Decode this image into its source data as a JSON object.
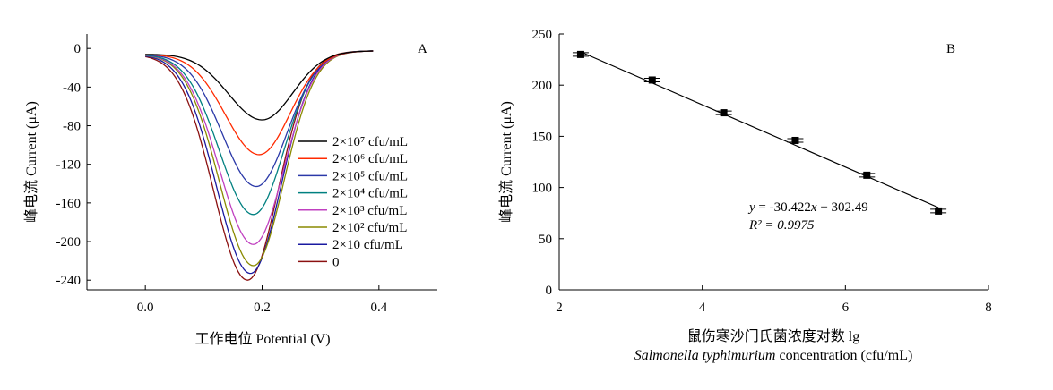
{
  "chart_data": [
    {
      "type": "line",
      "panel_label": "A",
      "xlabel": "工作电位 Potential (V)",
      "ylabel": "峰电流 Current (μA)",
      "xlim": [
        -0.1,
        0.5
      ],
      "ylim": [
        -250,
        15
      ],
      "x_ticks": [
        "0.0",
        "0.2",
        "0.4"
      ],
      "y_ticks": [
        "0",
        "-40",
        "-80",
        "-120",
        "-160",
        "-200",
        "-240"
      ],
      "legend_position": "right",
      "series": [
        {
          "name": "2×10⁷ cfu/mL",
          "color": "#000000",
          "peak_x": 0.2,
          "peak_y": -74
        },
        {
          "name": "2×10⁶ cfu/mL",
          "color": "#ff2a00",
          "peak_x": 0.195,
          "peak_y": -110
        },
        {
          "name": "2×10⁵ cfu/mL",
          "color": "#2b39a8",
          "peak_x": 0.19,
          "peak_y": -143
        },
        {
          "name": "2×10⁴ cfu/mL",
          "color": "#008080",
          "peak_x": 0.185,
          "peak_y": -172
        },
        {
          "name": "2×10³ cfu/mL",
          "color": "#c040c0",
          "peak_x": 0.185,
          "peak_y": -203
        },
        {
          "name": "2×10² cfu/mL",
          "color": "#8a8a00",
          "peak_x": 0.185,
          "peak_y": -225
        },
        {
          "name": "2×10 cfu/mL",
          "color": "#1a1aa0",
          "peak_x": 0.18,
          "peak_y": -233
        },
        {
          "name": "0",
          "color": "#8b1010",
          "peak_x": 0.175,
          "peak_y": -240
        }
      ]
    },
    {
      "type": "scatter",
      "panel_label": "B",
      "xlabel": "鼠伤寒沙门氏菌浓度对数 lg",
      "xlabel_line2_italic": "Salmonella typhimurium",
      "xlabel_line2_rest": " concentration (cfu/mL)",
      "ylabel": "峰电流 Current (μA)",
      "xlim": [
        2,
        8
      ],
      "ylim": [
        0,
        250
      ],
      "x_ticks": [
        "2",
        "4",
        "6",
        "8"
      ],
      "y_ticks": [
        "0",
        "50",
        "100",
        "150",
        "200",
        "250"
      ],
      "x": [
        2.3,
        3.3,
        4.3,
        5.3,
        6.3,
        7.3
      ],
      "y": [
        230,
        205,
        173,
        146,
        112,
        77
      ],
      "error": [
        2,
        2,
        2,
        2,
        2,
        2
      ],
      "fit": {
        "slope": -30.422,
        "intercept": 302.49
      },
      "equation_y": "y",
      "equation_rest": " = -30.422",
      "equation_x": "x",
      "equation_tail": " + 302.49",
      "r2_text": "R² = 0.9975"
    }
  ]
}
